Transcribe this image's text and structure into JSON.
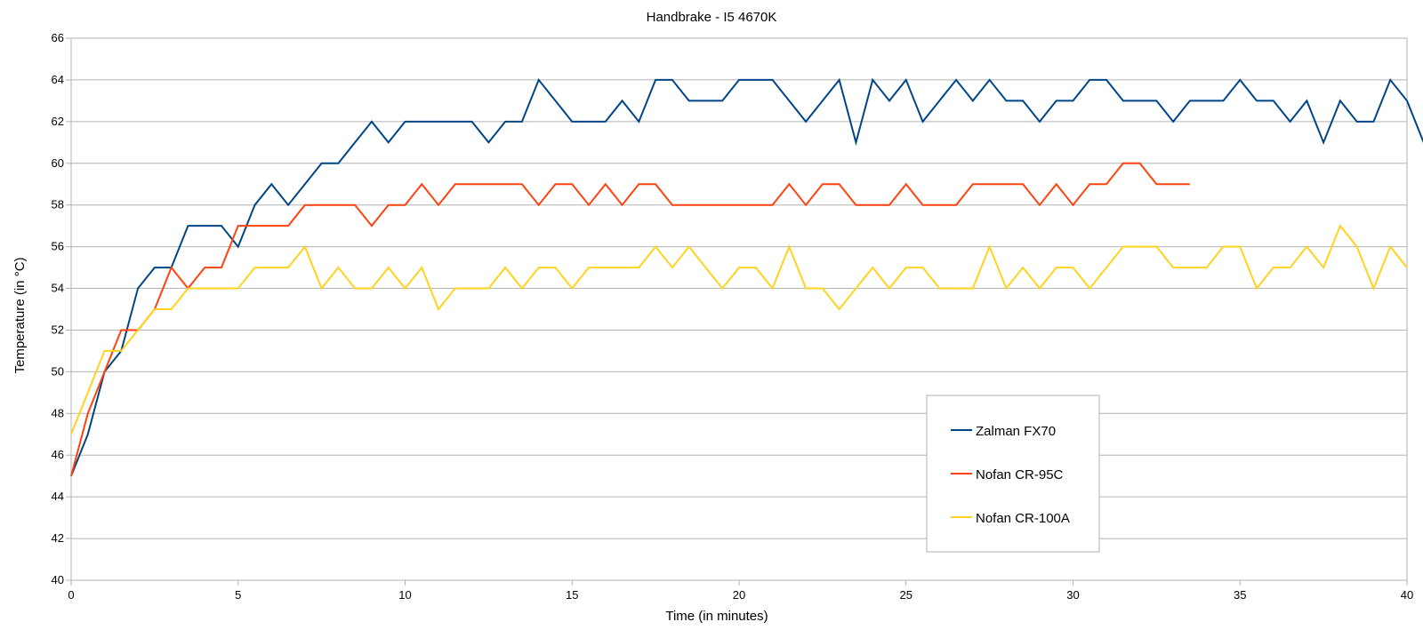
{
  "chart_data": {
    "type": "line",
    "title": "Handbrake - I5 4670K",
    "xlabel": "Time (in minutes)",
    "ylabel": "Temperature (in °C)",
    "xlim": [
      0,
      40
    ],
    "ylim": [
      40,
      66
    ],
    "x_ticks": [
      0,
      5,
      10,
      15,
      20,
      25,
      30,
      35,
      40
    ],
    "y_ticks": [
      40,
      42,
      44,
      46,
      48,
      50,
      52,
      54,
      56,
      58,
      60,
      62,
      64,
      66
    ],
    "x_step": 0.5,
    "grid": "horizontal",
    "legend_position": "bottom-right",
    "series": [
      {
        "name": "Zalman FX70",
        "color": "#004586",
        "values": [
          45,
          47,
          50,
          51,
          54,
          55,
          55,
          57,
          57,
          57,
          56,
          58,
          59,
          58,
          59,
          60,
          60,
          61,
          62,
          61,
          62,
          62,
          62,
          62,
          62,
          61,
          62,
          62,
          64,
          63,
          62,
          62,
          62,
          63,
          62,
          64,
          64,
          63,
          63,
          63,
          64,
          64,
          64,
          63,
          62,
          63,
          64,
          61,
          64,
          63,
          64,
          62,
          63,
          64,
          63,
          64,
          63,
          63,
          62,
          63,
          63,
          64,
          64,
          63,
          63,
          63,
          62,
          63,
          63,
          63,
          64,
          63,
          63,
          62,
          63,
          61,
          63,
          62,
          62,
          64,
          63,
          61
        ]
      },
      {
        "name": "Nofan CR-95C",
        "color": "#ff420e",
        "values": [
          45,
          48,
          50,
          52,
          52,
          53,
          55,
          54,
          55,
          55,
          57,
          57,
          57,
          57,
          58,
          58,
          58,
          58,
          57,
          58,
          58,
          59,
          58,
          59,
          59,
          59,
          59,
          59,
          58,
          59,
          59,
          58,
          59,
          58,
          59,
          59,
          58,
          58,
          58,
          58,
          58,
          58,
          58,
          59,
          58,
          59,
          59,
          58,
          58,
          58,
          59,
          58,
          58,
          58,
          59,
          59,
          59,
          59,
          58,
          59,
          58,
          59,
          59,
          60,
          60,
          59,
          59,
          59
        ]
      },
      {
        "name": "Nofan CR-100A",
        "color": "#ffd320",
        "values": [
          47,
          49,
          51,
          51,
          52,
          53,
          53,
          54,
          54,
          54,
          54,
          55,
          55,
          55,
          56,
          54,
          55,
          54,
          54,
          55,
          54,
          55,
          53,
          54,
          54,
          54,
          55,
          54,
          55,
          55,
          54,
          55,
          55,
          55,
          55,
          56,
          55,
          56,
          55,
          54,
          55,
          55,
          54,
          56,
          54,
          54,
          53,
          54,
          55,
          54,
          55,
          55,
          54,
          54,
          54,
          56,
          54,
          55,
          54,
          55,
          55,
          54,
          55,
          56,
          56,
          56,
          55,
          55,
          55,
          56,
          56,
          54,
          55,
          55,
          56,
          55,
          57,
          56,
          54,
          56,
          55
        ]
      }
    ]
  }
}
